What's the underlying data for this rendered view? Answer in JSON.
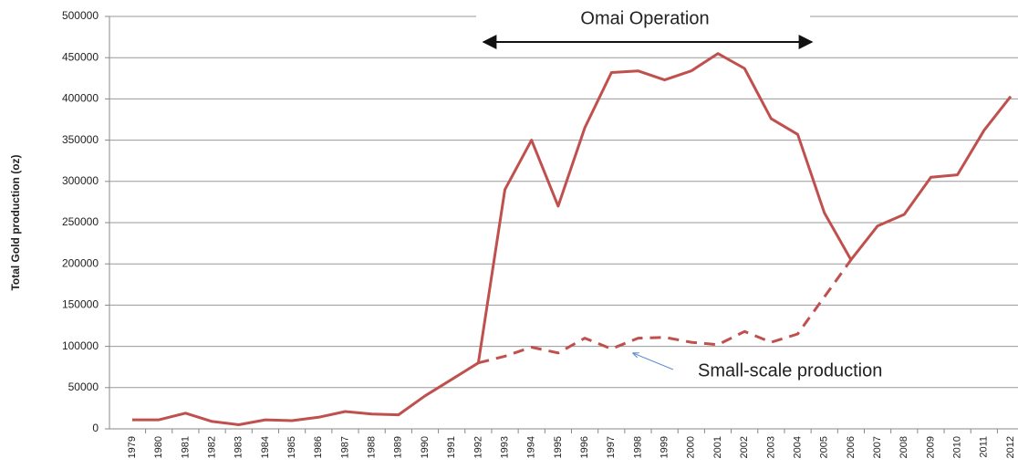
{
  "chart_data": {
    "type": "line",
    "y_label": "Total Gold production (oz)",
    "annotation": "Omai Operation",
    "categories": [
      "1979",
      "1980",
      "1981",
      "1982",
      "1983",
      "1984",
      "1985",
      "1986",
      "1987",
      "1988",
      "1989",
      "1990",
      "1991",
      "1992",
      "1993",
      "1994",
      "1995",
      "1996",
      "1997",
      "1998",
      "1999",
      "2000",
      "2001",
      "2002",
      "2003",
      "2004",
      "2005",
      "2006",
      "2007",
      "2008",
      "2009",
      "2010",
      "2011",
      "2012"
    ],
    "series": [
      {
        "color": "#c0504d",
        "dash": false,
        "values": [
          11000,
          11000,
          19000,
          9000,
          5000,
          11000,
          10000,
          14000,
          21000,
          18000,
          17000,
          40000,
          60000,
          80000,
          290000,
          350000,
          270000,
          365000,
          432000,
          434000,
          423000,
          434000,
          455000,
          437000,
          376000,
          357000,
          262000,
          205000,
          246000,
          260000,
          305000,
          308000,
          362000,
          403000
        ]
      },
      {
        "name": "Small-scale production",
        "color": "#c0504d",
        "dash": true,
        "values": [
          null,
          null,
          null,
          null,
          null,
          null,
          null,
          null,
          null,
          null,
          null,
          null,
          null,
          80000,
          88000,
          99000,
          92000,
          110000,
          97000,
          110000,
          111000,
          105000,
          102000,
          118000,
          105000,
          115000,
          160000,
          205000,
          null,
          null,
          null,
          null,
          null,
          null
        ]
      }
    ],
    "ylim": [
      0,
      500000
    ],
    "yticks": [
      0,
      50000,
      100000,
      150000,
      200000,
      250000,
      300000,
      350000,
      400000,
      450000,
      500000
    ],
    "grid": true
  }
}
